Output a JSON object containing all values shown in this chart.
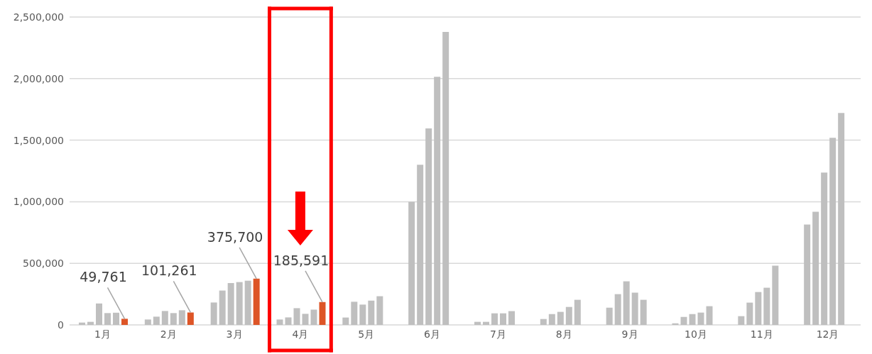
{
  "chart_data": {
    "type": "bar",
    "categories": [
      "1月",
      "2月",
      "3月",
      "4月",
      "5月",
      "6月",
      "7月",
      "8月",
      "9月",
      "10月",
      "11月",
      "12月"
    ],
    "series": [
      {
        "color": "#bfbfbf",
        "values": [
          19000,
          44000,
          182000,
          44000,
          60000,
          1000000,
          25000,
          48000,
          140000,
          13000,
          71000,
          815000
        ]
      },
      {
        "color": "#bfbfbf",
        "values": [
          25000,
          67000,
          279000,
          61000,
          188000,
          1300000,
          25000,
          88000,
          250000,
          65000,
          181000,
          919000
        ]
      },
      {
        "color": "#bfbfbf",
        "values": [
          174000,
          113000,
          340000,
          136000,
          165000,
          1596000,
          94000,
          106000,
          354000,
          88000,
          267000,
          1237000
        ]
      },
      {
        "color": "#bfbfbf",
        "values": [
          96000,
          96000,
          348000,
          90000,
          198000,
          2015000,
          94000,
          146000,
          262000,
          100000,
          302000,
          1519000
        ]
      },
      {
        "color": "#bfbfbf",
        "values": [
          99000,
          119000,
          359000,
          124000,
          233000,
          2379000,
          112000,
          204000,
          204000,
          152000,
          481000,
          1721000
        ]
      },
      {
        "color": "#dd5527",
        "values": [
          49761,
          101261,
          375700,
          185591,
          null,
          null,
          null,
          null,
          null,
          null,
          null,
          null
        ],
        "value_labels": [
          "49,761",
          "101,261",
          "375,700",
          "185,591",
          null,
          null,
          null,
          null,
          null,
          null,
          null,
          null
        ]
      }
    ],
    "ylim": [
      0,
      2500000
    ],
    "yticks": [
      {
        "value": 0,
        "label": "0"
      },
      {
        "value": 500000,
        "label": "500,000"
      },
      {
        "value": 1000000,
        "label": "1,000,000"
      },
      {
        "value": 1500000,
        "label": "1,500,000"
      },
      {
        "value": 2000000,
        "label": "2,000,000"
      },
      {
        "value": 2500000,
        "label": "2,500,000"
      }
    ],
    "grid": "y",
    "legend": false
  }
}
